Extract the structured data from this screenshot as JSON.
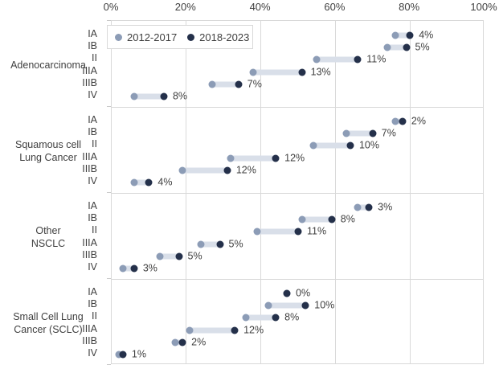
{
  "chart_data": {
    "type": "dumbbell",
    "title": "",
    "x_axis": {
      "min": 0,
      "max": 100,
      "tick_step": 20,
      "tick_labels": [
        "0%",
        "20%",
        "40%",
        "60%",
        "80%",
        "100%"
      ],
      "position": "top",
      "grid": true
    },
    "legend": [
      {
        "label": "2012-2017",
        "series_key": "v_2012_2017"
      },
      {
        "label": "2018-2023",
        "series_key": "v_2018_2023"
      }
    ],
    "colors": {
      "series_2012_2017": "#8c9cb6",
      "series_2018_2023": "#24304a",
      "connector": "#d9dfe9",
      "gridline": "#d9d9d9",
      "text": "#404040"
    },
    "groups": [
      {
        "label_lines": [
          "Adenocarcinoma"
        ],
        "rows": [
          {
            "stage": "IA",
            "v_2012_2017": 76,
            "v_2018_2023": 80,
            "diff_label": "4%"
          },
          {
            "stage": "IB",
            "v_2012_2017": 74,
            "v_2018_2023": 79,
            "diff_label": "5%"
          },
          {
            "stage": "II",
            "v_2012_2017": 55,
            "v_2018_2023": 66,
            "diff_label": "11%"
          },
          {
            "stage": "IIIA",
            "v_2012_2017": 38,
            "v_2018_2023": 51,
            "diff_label": "13%"
          },
          {
            "stage": "IIIB",
            "v_2012_2017": 27,
            "v_2018_2023": 34,
            "diff_label": "7%"
          },
          {
            "stage": "IV",
            "v_2012_2017": 6,
            "v_2018_2023": 14,
            "diff_label": "8%"
          }
        ]
      },
      {
        "label_lines": [
          "Squamous cell",
          "Lung Cancer"
        ],
        "rows": [
          {
            "stage": "IA",
            "v_2012_2017": 76,
            "v_2018_2023": 78,
            "diff_label": "2%"
          },
          {
            "stage": "IB",
            "v_2012_2017": 63,
            "v_2018_2023": 70,
            "diff_label": "7%"
          },
          {
            "stage": "II",
            "v_2012_2017": 54,
            "v_2018_2023": 64,
            "diff_label": "10%"
          },
          {
            "stage": "IIIA",
            "v_2012_2017": 32,
            "v_2018_2023": 44,
            "diff_label": "12%"
          },
          {
            "stage": "IIIB",
            "v_2012_2017": 19,
            "v_2018_2023": 31,
            "diff_label": "12%"
          },
          {
            "stage": "IV",
            "v_2012_2017": 6,
            "v_2018_2023": 10,
            "diff_label": "4%"
          }
        ]
      },
      {
        "label_lines": [
          "Other",
          "NSCLC"
        ],
        "rows": [
          {
            "stage": "IA",
            "v_2012_2017": 66,
            "v_2018_2023": 69,
            "diff_label": "3%"
          },
          {
            "stage": "IB",
            "v_2012_2017": 51,
            "v_2018_2023": 59,
            "diff_label": "8%"
          },
          {
            "stage": "II",
            "v_2012_2017": 39,
            "v_2018_2023": 50,
            "diff_label": "11%"
          },
          {
            "stage": "IIIA",
            "v_2012_2017": 24,
            "v_2018_2023": 29,
            "diff_label": "5%"
          },
          {
            "stage": "IIIB",
            "v_2012_2017": 13,
            "v_2018_2023": 18,
            "diff_label": "5%"
          },
          {
            "stage": "IV",
            "v_2012_2017": 3,
            "v_2018_2023": 6,
            "diff_label": "3%"
          }
        ]
      },
      {
        "label_lines": [
          "Small Cell Lung",
          "Cancer (SCLC)"
        ],
        "rows": [
          {
            "stage": "IA",
            "v_2012_2017": 47,
            "v_2018_2023": 47,
            "diff_label": "0%"
          },
          {
            "stage": "IB",
            "v_2012_2017": 42,
            "v_2018_2023": 52,
            "diff_label": "10%"
          },
          {
            "stage": "II",
            "v_2012_2017": 36,
            "v_2018_2023": 44,
            "diff_label": "8%"
          },
          {
            "stage": "IIIA",
            "v_2012_2017": 21,
            "v_2018_2023": 33,
            "diff_label": "12%"
          },
          {
            "stage": "IIIB",
            "v_2012_2017": 17,
            "v_2018_2023": 19,
            "diff_label": "2%"
          },
          {
            "stage": "IV",
            "v_2012_2017": 2,
            "v_2018_2023": 3,
            "diff_label": "1%"
          }
        ]
      }
    ]
  }
}
